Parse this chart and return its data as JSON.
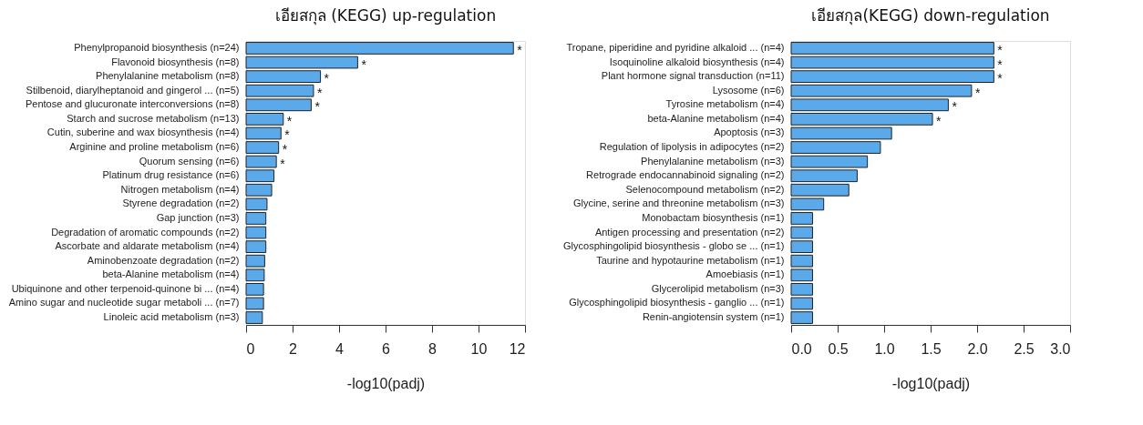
{
  "chart_data": [
    {
      "type": "bar",
      "orientation": "horizontal",
      "title": "เอียสกุล (KEGG) up-regulation",
      "xlabel": "-log10(padj)",
      "color": "#5aaaeb",
      "categories": [
        "Phenylpropanoid biosynthesis (n=24)",
        "Flavonoid biosynthesis (n=8)",
        "Phenylalanine metabolism (n=8)",
        "Stilbenoid, diarylheptanoid and gingerol  ... (n=5)",
        "Pentose and glucuronate interconversions (n=8)",
        "Starch and sucrose metabolism (n=13)",
        "Cutin, suberine and wax biosynthesis (n=4)",
        "Arginine and proline metabolism (n=6)",
        "Quorum sensing (n=6)",
        "Platinum drug resistance (n=6)",
        "Nitrogen metabolism (n=4)",
        "Styrene degradation (n=2)",
        "Gap junction (n=3)",
        "Degradation of aromatic compounds (n=2)",
        "Ascorbate and aldarate metabolism (n=4)",
        "Aminobenzoate degradation (n=2)",
        "beta-Alanine metabolism (n=4)",
        "Ubiquinone and other terpenoid-quinone bi ... (n=4)",
        "Amino sugar and nucleotide sugar metaboli ... (n=7)",
        "Linoleic acid metabolism (n=3)"
      ],
      "values": [
        11.5,
        4.8,
        3.2,
        2.9,
        2.8,
        1.6,
        1.5,
        1.4,
        1.3,
        1.2,
        1.1,
        0.9,
        0.85,
        0.85,
        0.85,
        0.8,
        0.78,
        0.75,
        0.75,
        0.7
      ],
      "value_labels": [
        "*",
        "*",
        "*",
        "*",
        "*",
        "*",
        "*",
        "*",
        "*",
        null,
        null,
        null,
        null,
        null,
        null,
        null,
        null,
        null,
        null,
        null
      ],
      "xlim": [
        0,
        12
      ],
      "xticks": [
        0,
        2,
        4,
        6,
        8,
        10,
        12
      ],
      "grid": false
    },
    {
      "type": "bar",
      "orientation": "horizontal",
      "title": "เอียสกุล(KEGG) down-regulation",
      "xlabel": "-log10(padj)",
      "color": "#5aaaeb",
      "categories": [
        "Tropane, piperidine and pyridine alkaloid ... (n=4)",
        "Isoquinoline alkaloid biosynthesis (n=4)",
        "Plant hormone signal transduction (n=11)",
        "Lysosome (n=6)",
        "Tyrosine metabolism (n=4)",
        "beta-Alanine metabolism (n=4)",
        "Apoptosis (n=3)",
        "Regulation of lipolysis in adipocytes (n=2)",
        "Phenylalanine metabolism (n=3)",
        "Retrograde endocannabinoid signaling (n=2)",
        "Selenocompound metabolism (n=2)",
        "Glycine, serine and threonine metabolism (n=3)",
        "Monobactam biosynthesis (n=1)",
        "Antigen processing and presentation (n=2)",
        "Glycosphingolipid biosynthesis - globo se ... (n=1)",
        "Taurine and hypotaurine metabolism (n=1)",
        "Amoebiasis (n=1)",
        "Glycerolipid metabolism (n=3)",
        "Glycosphingolipid biosynthesis - ganglio  ... (n=1)",
        "Renin-angiotensin system (n=1)"
      ],
      "values": [
        2.18,
        2.18,
        2.18,
        1.94,
        1.69,
        1.52,
        1.08,
        0.96,
        0.82,
        0.71,
        0.62,
        0.35,
        0.23,
        0.23,
        0.23,
        0.23,
        0.23,
        0.23,
        0.23,
        0.23
      ],
      "value_labels": [
        "*",
        "*",
        "*",
        "*",
        "*",
        "*",
        null,
        null,
        null,
        null,
        null,
        null,
        null,
        null,
        null,
        null,
        null,
        null,
        null,
        null
      ],
      "xlim": [
        0,
        3.0
      ],
      "xticks": [
        {
          "value": 0,
          "label": "0.0"
        },
        0.5,
        {
          "value": 1,
          "label": "1.0"
        },
        1.5,
        {
          "value": 2,
          "label": "2.0"
        },
        2.5,
        {
          "value": 3,
          "label": "3.0"
        }
      ],
      "grid": false
    }
  ]
}
